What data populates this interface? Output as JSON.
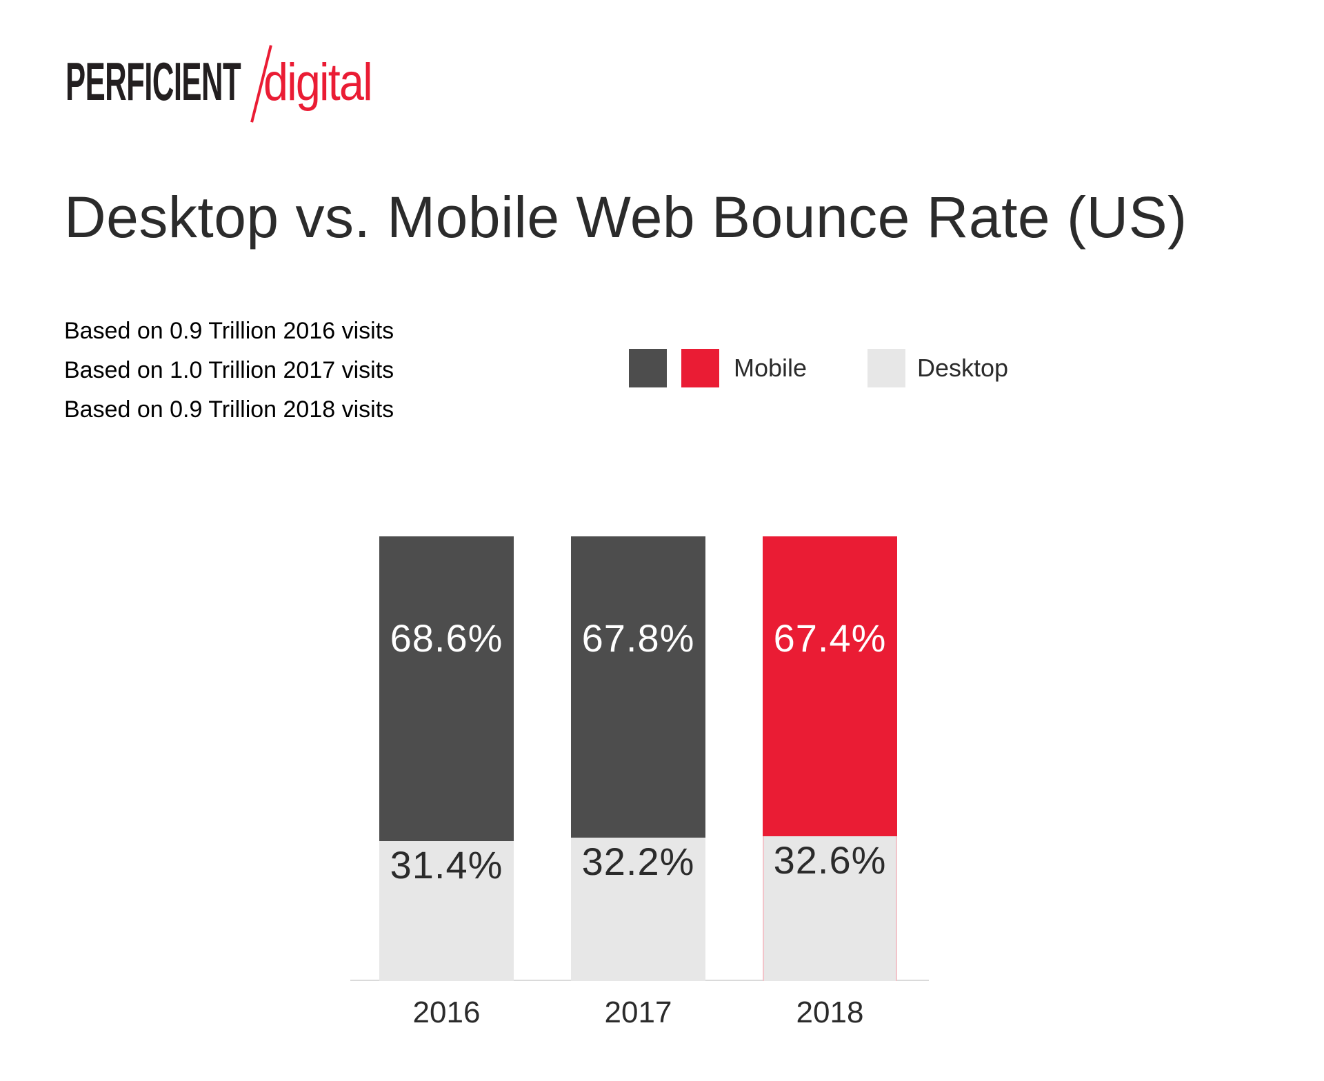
{
  "logo": {
    "primary": "PERFICIENT",
    "secondary": "digital"
  },
  "title": "Desktop vs. Mobile Web Bounce Rate (US)",
  "notes": [
    "Based on 0.9 Trillion 2016 visits",
    "Based on 1.0 Trillion 2017 visits",
    "Based on 0.9 Trillion 2018 visits"
  ],
  "legend": {
    "mobile_label": "Mobile",
    "desktop_label": "Desktop"
  },
  "colors": {
    "logo_black": "#231f20",
    "brand_red": "#ea1c34",
    "mobile_dark": "#4d4d4d",
    "desktop_gray": "#e7e7e7",
    "desktop_edge_pink": "#f2c4ca",
    "axis_line": "#dadada",
    "text_dark": "#2b2b2b",
    "label_on_bar_light": "#ffffff"
  },
  "chart_data": {
    "type": "bar",
    "stacked": true,
    "title": "Desktop vs. Mobile Web Bounce Rate (US)",
    "categories": [
      "2016",
      "2017",
      "2018"
    ],
    "series": [
      {
        "name": "Mobile",
        "values": [
          68.6,
          67.8,
          67.4
        ],
        "bar_colors": [
          "#4d4d4d",
          "#4d4d4d",
          "#ea1c34"
        ],
        "label_color": "#ffffff"
      },
      {
        "name": "Desktop",
        "values": [
          31.4,
          32.2,
          32.6
        ],
        "bar_colors": [
          "#e7e7e7",
          "#e7e7e7",
          "#e7e7e7"
        ],
        "edge_colors": [
          null,
          null,
          "#f2c4ca"
        ],
        "label_color": "#2b2b2b"
      }
    ],
    "value_suffix": "%",
    "ylim": [
      0,
      100
    ],
    "grid": false,
    "legend_position": "top-right",
    "xlabel": "",
    "ylabel": ""
  }
}
